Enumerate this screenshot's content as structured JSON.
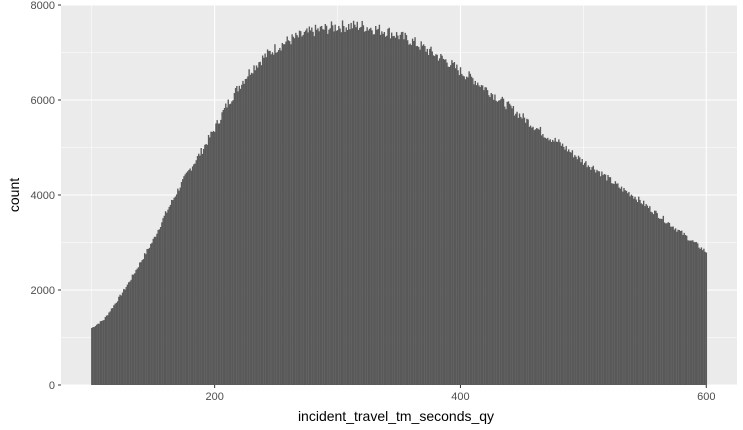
{
  "chart_data": {
    "type": "bar",
    "subtype": "histogram",
    "title": "",
    "xlabel": "incident_travel_tm_seconds_qy",
    "ylabel": "count",
    "xlim": [
      75,
      625
    ],
    "ylim": [
      0,
      8000
    ],
    "x_ticks": [
      200,
      400,
      600
    ],
    "x_tick_labels": [
      "200",
      "400",
      "600"
    ],
    "y_ticks": [
      0,
      2000,
      4000,
      6000,
      8000
    ],
    "y_tick_labels": [
      "0",
      "2000",
      "4000",
      "6000",
      "8000"
    ],
    "grid": true,
    "legend": "none",
    "bin_width": 1,
    "x": [
      100,
      110,
      120,
      130,
      140,
      150,
      160,
      170,
      180,
      190,
      200,
      210,
      220,
      230,
      240,
      250,
      260,
      270,
      280,
      290,
      300,
      310,
      320,
      330,
      340,
      350,
      360,
      370,
      380,
      390,
      400,
      410,
      420,
      430,
      440,
      450,
      460,
      470,
      480,
      490,
      500,
      510,
      520,
      530,
      540,
      550,
      560,
      570,
      580,
      590,
      600
    ],
    "values": [
      1200,
      1380,
      1750,
      2150,
      2600,
      3050,
      3600,
      4100,
      4550,
      4950,
      5400,
      5900,
      6300,
      6650,
      6900,
      7100,
      7250,
      7350,
      7450,
      7500,
      7550,
      7560,
      7560,
      7500,
      7450,
      7350,
      7250,
      7100,
      6950,
      6800,
      6600,
      6450,
      6250,
      6050,
      5850,
      5650,
      5450,
      5250,
      5100,
      4900,
      4700,
      4550,
      4350,
      4150,
      4000,
      3800,
      3600,
      3400,
      3200,
      3000,
      2800
    ]
  },
  "colors": {
    "panel_background": "#ebebeb",
    "grid_major": "#ffffff",
    "bar_fill": "#595959",
    "tick_text": "#4d4d4d",
    "axis_title_text": "#000000"
  }
}
